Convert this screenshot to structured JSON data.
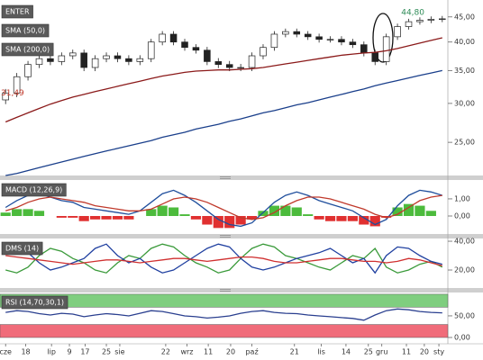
{
  "chart_data": [
    {
      "type": "candlestick",
      "title": "ENTER",
      "log_scale": true,
      "ylim": [
        21.4,
        48.3
      ],
      "yticks": [
        {
          "value": 25,
          "label": "25,00"
        },
        {
          "value": 30,
          "label": "30,00"
        },
        {
          "value": 35,
          "label": "35,00"
        },
        {
          "value": 40,
          "label": "40,00"
        },
        {
          "value": 45,
          "label": "45,00"
        }
      ],
      "up_color": "#ffffff",
      "down_color": "#222222",
      "open": [
        30.5,
        31.5,
        34,
        36,
        37,
        36.5,
        37.5,
        38,
        35.5,
        37,
        37.5,
        37,
        36.5,
        37,
        40,
        41.5,
        40,
        39,
        38.5,
        36.5,
        36,
        35.5,
        35.5,
        37.5,
        39,
        41.5,
        42,
        41.5,
        41,
        40.5,
        40.5,
        40,
        39.5,
        38,
        36.5,
        41,
        43,
        44,
        44.3,
        44.5
      ],
      "high": [
        32.1,
        34.6,
        36.6,
        37.6,
        37.6,
        38.1,
        38.6,
        38.6,
        37.6,
        38.1,
        38.1,
        37.6,
        37.6,
        40.6,
        42.1,
        42.1,
        40.6,
        39.6,
        39.1,
        37.1,
        36.6,
        36.1,
        38.1,
        39.6,
        42.1,
        42.6,
        42.6,
        42.1,
        41.6,
        41.1,
        41.1,
        40.6,
        40.1,
        38.6,
        41.6,
        43.6,
        44.6,
        44.9,
        45.1,
        45.2
      ],
      "low": [
        29.9,
        30.9,
        33.4,
        35.4,
        35.9,
        35.9,
        36.9,
        34.9,
        34.9,
        36.4,
        36.4,
        35.9,
        35.9,
        36.4,
        39.4,
        39.4,
        38.4,
        37.9,
        35.9,
        35.4,
        34.9,
        34.9,
        34.9,
        36.9,
        38.4,
        40.9,
        40.9,
        40.4,
        39.9,
        39.9,
        39.4,
        38.9,
        37.4,
        35.9,
        35.9,
        40.4,
        42.4,
        43.4,
        43.7,
        43.9
      ],
      "close": [
        31.5,
        34,
        36,
        37,
        36.5,
        37.5,
        38,
        35.5,
        37,
        37.5,
        37,
        36.5,
        37,
        40,
        41.5,
        40,
        39,
        38.5,
        36.5,
        36,
        35.5,
        35.5,
        37.5,
        39,
        41.5,
        42,
        41.5,
        41,
        40.5,
        40.5,
        40,
        39.5,
        38,
        36.5,
        41,
        43,
        44,
        44.3,
        44.5,
        44.6
      ],
      "series": [
        {
          "name": "SMA (50,0)",
          "color": "#8b1a1a",
          "values": [
            27.5,
            28.1,
            28.7,
            29.3,
            29.9,
            30.4,
            30.9,
            31.3,
            31.7,
            32.1,
            32.5,
            32.9,
            33.3,
            33.7,
            34.1,
            34.4,
            34.7,
            34.9,
            35.0,
            35.1,
            35.1,
            35.2,
            35.3,
            35.5,
            35.8,
            36.1,
            36.4,
            36.7,
            37.0,
            37.3,
            37.6,
            37.8,
            38.0,
            38.1,
            38.4,
            38.8,
            39.3,
            39.8,
            40.3,
            40.8
          ]
        },
        {
          "name": "SMA (200,0)",
          "color": "#1a3f8b",
          "values": [
            21.4,
            21.6,
            21.9,
            22.2,
            22.5,
            22.8,
            23.1,
            23.4,
            23.7,
            24.0,
            24.3,
            24.6,
            24.9,
            25.2,
            25.6,
            25.9,
            26.2,
            26.6,
            26.9,
            27.2,
            27.6,
            27.9,
            28.3,
            28.7,
            29.0,
            29.4,
            29.8,
            30.1,
            30.5,
            30.9,
            31.3,
            31.7,
            32.1,
            32.6,
            33.0,
            33.4,
            33.8,
            34.2,
            34.6,
            35.0
          ]
        }
      ],
      "annotations": [
        {
          "value": 31.49,
          "label": "31,49",
          "color": "#c0392b"
        },
        {
          "value": 44.8,
          "label": "44,80",
          "color": "#2e8b57"
        }
      ]
    },
    {
      "type": "line",
      "title": "MACD (12,26,9)",
      "ylim": [
        -1.05,
        2.1
      ],
      "yticks": [
        {
          "value": 0,
          "label": "0,00"
        },
        {
          "value": 1,
          "label": "1,00"
        }
      ],
      "series": [
        {
          "color": "#1f4e9c",
          "values": [
            0.5,
            0.9,
            1.2,
            1.3,
            1.1,
            0.9,
            0.8,
            0.5,
            0.4,
            0.3,
            0.2,
            0.1,
            0.3,
            0.8,
            1.3,
            1.5,
            1.2,
            0.8,
            0.3,
            -0.2,
            -0.5,
            -0.6,
            -0.4,
            0.2,
            0.8,
            1.2,
            1.4,
            1.2,
            0.9,
            0.7,
            0.5,
            0.3,
            -0.1,
            -0.5,
            -0.2,
            0.6,
            1.2,
            1.5,
            1.4,
            1.2
          ]
        },
        {
          "color": "#c0392b",
          "values": [
            0.3,
            0.5,
            0.8,
            1.0,
            1.1,
            1.0,
            0.9,
            0.8,
            0.6,
            0.5,
            0.4,
            0.3,
            0.3,
            0.4,
            0.7,
            1.0,
            1.1,
            1.0,
            0.8,
            0.5,
            0.2,
            -0.1,
            -0.2,
            -0.1,
            0.2,
            0.6,
            0.9,
            1.1,
            1.1,
            1.0,
            0.8,
            0.6,
            0.4,
            0.1,
            -0.1,
            0.1,
            0.5,
            0.9,
            1.1,
            1.2
          ]
        }
      ],
      "histogram": {
        "pos_color": "#4cbb3c",
        "neg_color": "#e03030",
        "values": [
          0.2,
          0.4,
          0.4,
          0.3,
          0.0,
          -0.1,
          -0.1,
          -0.3,
          -0.2,
          -0.2,
          -0.2,
          -0.2,
          0.0,
          0.4,
          0.6,
          0.5,
          0.1,
          -0.2,
          -0.5,
          -0.7,
          -0.7,
          -0.5,
          -0.2,
          0.3,
          0.6,
          0.6,
          0.5,
          0.1,
          -0.2,
          -0.3,
          -0.3,
          -0.3,
          -0.5,
          -0.6,
          -0.1,
          0.5,
          0.7,
          0.6,
          0.3,
          0.0
        ]
      }
    },
    {
      "type": "line",
      "title": "DMS (14)",
      "ylim": [
        7.5,
        41.9
      ],
      "yticks": [
        {
          "value": 20,
          "label": "20,00"
        },
        {
          "value": 40,
          "label": "40,00"
        }
      ],
      "series": [
        {
          "color": "#3a9a3a",
          "values": [
            20,
            18,
            22,
            30,
            35,
            33,
            28,
            25,
            20,
            18,
            25,
            30,
            28,
            35,
            38,
            36,
            30,
            25,
            22,
            18,
            20,
            28,
            35,
            38,
            36,
            30,
            28,
            25,
            22,
            20,
            25,
            30,
            28,
            35,
            22,
            18,
            20,
            24,
            26,
            22
          ]
        },
        {
          "color": "#2040a0",
          "values": [
            35,
            38,
            32,
            25,
            20,
            22,
            25,
            28,
            35,
            38,
            30,
            25,
            28,
            22,
            18,
            20,
            25,
            30,
            35,
            38,
            36,
            28,
            22,
            20,
            22,
            25,
            28,
            30,
            32,
            35,
            30,
            25,
            28,
            18,
            30,
            36,
            35,
            30,
            26,
            24
          ]
        },
        {
          "color": "#d03030",
          "values": [
            30,
            29,
            28,
            27,
            26,
            25,
            24,
            25,
            26,
            27,
            27,
            26,
            25,
            26,
            27,
            28,
            28,
            27,
            26,
            27,
            28,
            29,
            29,
            28,
            26,
            25,
            25,
            26,
            27,
            28,
            28,
            27,
            26,
            26,
            25,
            26,
            28,
            27,
            25,
            23
          ]
        }
      ]
    },
    {
      "type": "line",
      "title": "RSI (14,70,30,1)",
      "ylim": [
        -14.6,
        104
      ],
      "yticks": [
        {
          "value": 0,
          "label": "0,00"
        },
        {
          "value": 50,
          "label": "50,00"
        }
      ],
      "bands": [
        {
          "from": 70,
          "to": 100,
          "color": "#7fce7f"
        },
        {
          "from": 0,
          "to": 30,
          "color": "#f06c7a"
        }
      ],
      "series": [
        {
          "color": "#2a3f8f",
          "values": [
            58,
            62,
            60,
            55,
            52,
            56,
            54,
            48,
            52,
            55,
            53,
            50,
            56,
            62,
            60,
            55,
            50,
            48,
            45,
            47,
            50,
            56,
            60,
            62,
            58,
            56,
            55,
            52,
            50,
            48,
            46,
            44,
            40,
            52,
            62,
            66,
            64,
            60,
            58,
            57
          ]
        }
      ],
      "xlim": [
        0,
        40
      ],
      "xticks": [
        {
          "value": 0.5,
          "label": "cze"
        },
        {
          "value": 2.3,
          "label": "18"
        },
        {
          "value": 4.6,
          "label": "lip"
        },
        {
          "value": 6.2,
          "label": "9"
        },
        {
          "value": 7.6,
          "label": "17"
        },
        {
          "value": 9.5,
          "label": "25"
        },
        {
          "value": 10.7,
          "label": "sie"
        },
        {
          "value": 14.8,
          "label": "22"
        },
        {
          "value": 16.7,
          "label": "wrz"
        },
        {
          "value": 18.6,
          "label": "11"
        },
        {
          "value": 20.6,
          "label": "20"
        },
        {
          "value": 22.5,
          "label": "paź"
        },
        {
          "value": 26.3,
          "label": "21"
        },
        {
          "value": 28.7,
          "label": "lis"
        },
        {
          "value": 30.9,
          "label": "14"
        },
        {
          "value": 32.9,
          "label": "25"
        },
        {
          "value": 34.1,
          "label": "gru"
        },
        {
          "value": 36.3,
          "label": "11"
        },
        {
          "value": 37.9,
          "label": "20"
        },
        {
          "value": 39.2,
          "label": "sty"
        }
      ]
    }
  ]
}
